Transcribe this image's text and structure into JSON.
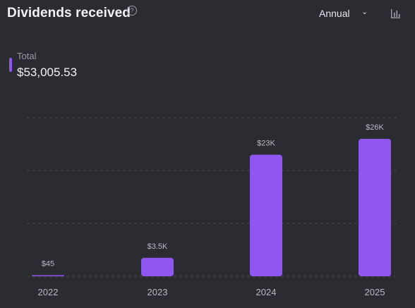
{
  "header": {
    "title": "Dividends received",
    "help_icon": "help-circle-icon",
    "period_selected": "Annual",
    "chevron_icon": "chevron-down-icon",
    "chart_type_icon": "bar-chart-icon"
  },
  "legend": {
    "label": "Total",
    "value": "$53,005.53",
    "color": "#9057f0"
  },
  "chart_data": {
    "type": "bar",
    "categories": [
      "2022",
      "2023",
      "2024",
      "2025"
    ],
    "values": [
      45,
      3500,
      23000,
      26000
    ],
    "value_labels": [
      "$45",
      "$3.5K",
      "$23K",
      "$26K"
    ],
    "ylim": [
      0,
      30000
    ],
    "grid": true,
    "bar_color": "#9057f0"
  }
}
